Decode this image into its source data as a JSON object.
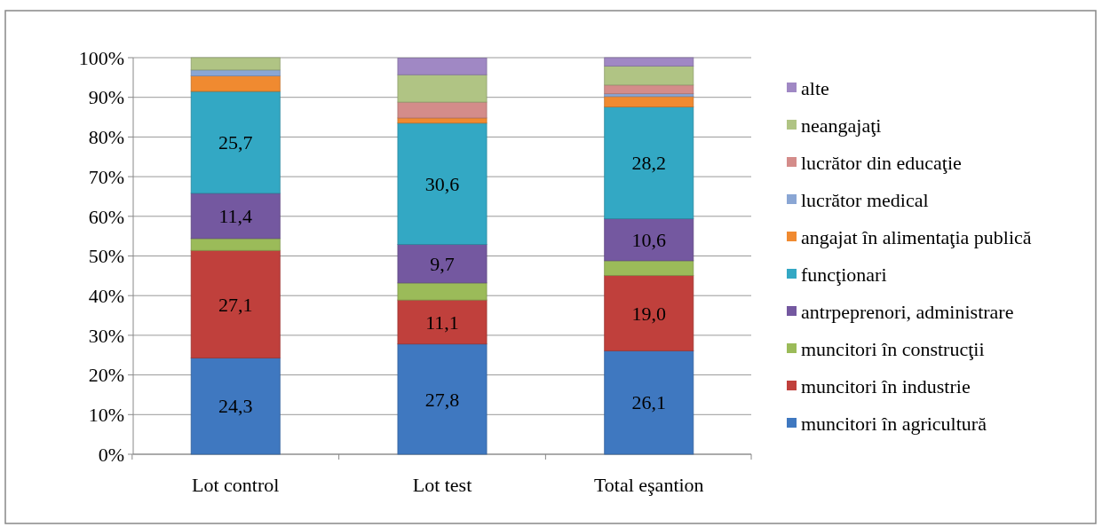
{
  "chart_data": {
    "type": "bar",
    "stacked": true,
    "categories": [
      "Lot control",
      "Lot test",
      "Total eşantion"
    ],
    "ylim": [
      0,
      100
    ],
    "yticks": [
      {
        "value": 0,
        "label": "0%"
      },
      {
        "value": 10,
        "label": "10%"
      },
      {
        "value": 20,
        "label": "20%"
      },
      {
        "value": 30,
        "label": "30%"
      },
      {
        "value": 40,
        "label": "40%"
      },
      {
        "value": 50,
        "label": "50%"
      },
      {
        "value": 60,
        "label": "60%"
      },
      {
        "value": 70,
        "label": "70%"
      },
      {
        "value": 80,
        "label": "80%"
      },
      {
        "value": 90,
        "label": "90%"
      },
      {
        "value": 100,
        "label": "100%"
      }
    ],
    "grid": "y",
    "legend": "right",
    "series": [
      {
        "name": "muncitori în agricultură",
        "color": "#3f78c0",
        "values": [
          24.3,
          27.8,
          26.1
        ],
        "value_labels": [
          "24,3",
          "27,8",
          "26,1"
        ]
      },
      {
        "name": "muncitori în industrie",
        "color": "#c0403c",
        "values": [
          27.1,
          11.1,
          19.0
        ],
        "value_labels": [
          "27,1",
          "11,1",
          "19,0"
        ]
      },
      {
        "name": "muncitori în construcţii",
        "color": "#9bbb59",
        "values": [
          3.0,
          4.3,
          3.7
        ]
      },
      {
        "name": "antrpeprenori, administrare",
        "color": "#7458a0",
        "values": [
          11.4,
          9.7,
          10.6
        ],
        "value_labels": [
          "11,4",
          "9,7",
          "10,6"
        ]
      },
      {
        "name": "funcţionari",
        "color": "#33a8c4",
        "values": [
          25.7,
          30.6,
          28.2
        ],
        "value_labels": [
          "25,7",
          "30,6",
          "28,2"
        ]
      },
      {
        "name": "angajat în alimentaţia publică",
        "color": "#f08a30",
        "values": [
          3.9,
          1.3,
          2.6
        ]
      },
      {
        "name": "lucrător medical",
        "color": "#8aa6d4",
        "values": [
          1.5,
          0,
          0.7
        ]
      },
      {
        "name": "lucrător din educaţie",
        "color": "#d48c8a",
        "values": [
          0,
          4.0,
          2.2
        ]
      },
      {
        "name": "neangajaţi",
        "color": "#b0c484",
        "values": [
          3.1,
          6.9,
          4.8
        ]
      },
      {
        "name": "alte",
        "color": "#a088c4",
        "values": [
          0,
          4.2,
          2.1
        ]
      }
    ]
  }
}
